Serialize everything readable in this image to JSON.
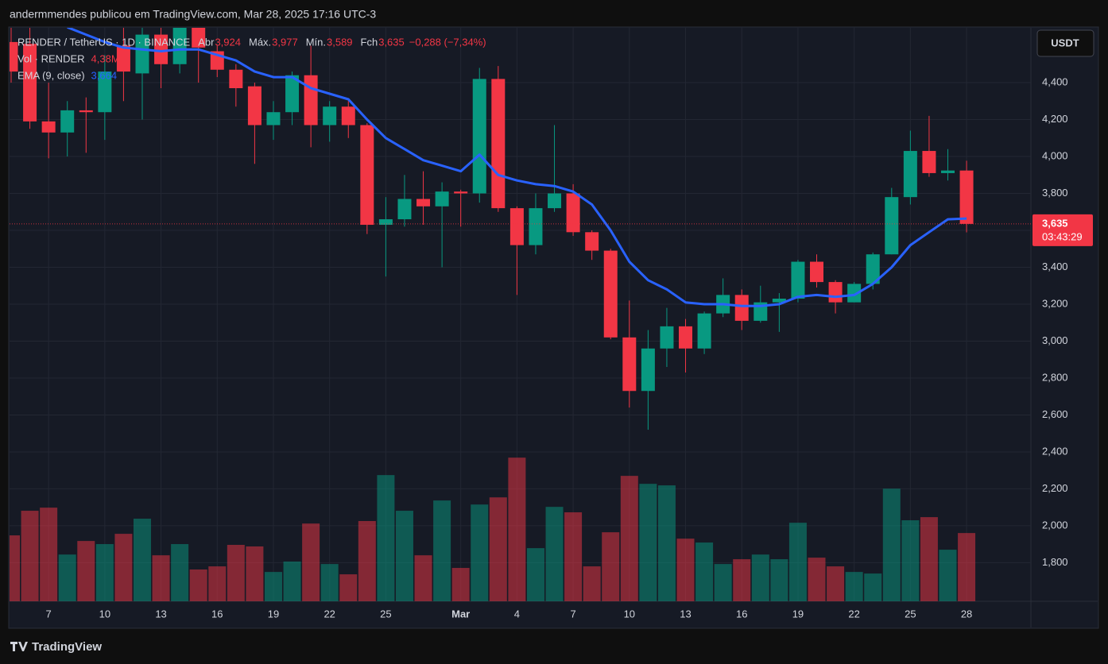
{
  "chart_data": {
    "type": "candlestick",
    "attribution": "andermmendes publicou em TradingView.com, Mar 28, 2025 17:16 UTC-3",
    "symbol": "RENDER / TetherUS · 1D · BINANCE",
    "ohlc_legend": [
      {
        "label": "Abr",
        "value": "3,924"
      },
      {
        "label": "Máx.",
        "value": "3,977"
      },
      {
        "label": "Mín.",
        "value": "3,589"
      },
      {
        "label": "Fch",
        "value": "3,635"
      }
    ],
    "change": "−0,288 (−7,34%)",
    "volume_legend": {
      "name": "Vol · RENDER",
      "value": "4,38M"
    },
    "ema_legend": {
      "name": "EMA (9, close)",
      "value": "3,664"
    },
    "currency": "USDT",
    "price_label": "3,635",
    "countdown": "03:43:29",
    "brand": "TradingView",
    "categories": [
      null,
      null,
      "7",
      null,
      null,
      "10",
      null,
      null,
      "13",
      null,
      null,
      "16",
      null,
      null,
      "19",
      null,
      null,
      "22",
      null,
      null,
      "25",
      null,
      null,
      null,
      "Mar",
      null,
      null,
      "4",
      null,
      null,
      "7",
      null,
      null,
      "10",
      null,
      null,
      "13",
      null,
      null,
      "16",
      null,
      null,
      "19",
      null,
      null,
      "22",
      null,
      null,
      "25",
      null,
      null,
      "28"
    ],
    "open": [
      4.62,
      4.61,
      4.19,
      4.13,
      4.25,
      4.24,
      4.6,
      4.45,
      4.66,
      4.5,
      4.7,
      4.57,
      4.47,
      4.38,
      4.17,
      4.24,
      4.44,
      4.17,
      4.27,
      4.17,
      3.63,
      3.66,
      3.77,
      3.73,
      3.81,
      3.8,
      4.42,
      3.72,
      3.52,
      3.72,
      3.8,
      3.59,
      3.49,
      3.02,
      2.73,
      2.96,
      3.08,
      2.96,
      3.15,
      3.25,
      3.11,
      3.21,
      3.23,
      3.43,
      3.32,
      3.21,
      3.31,
      3.47,
      3.78,
      4.03,
      3.91,
      3.924
    ],
    "high": [
      4.7,
      4.7,
      4.4,
      4.3,
      4.32,
      4.55,
      4.7,
      4.75,
      4.75,
      4.8,
      4.78,
      4.6,
      4.5,
      4.4,
      4.3,
      4.46,
      4.6,
      4.3,
      4.3,
      4.18,
      3.78,
      3.9,
      3.92,
      3.86,
      3.82,
      4.48,
      4.49,
      3.73,
      3.8,
      4.17,
      3.85,
      3.6,
      3.5,
      3.22,
      3.06,
      3.18,
      3.12,
      3.16,
      3.34,
      3.28,
      3.3,
      3.26,
      3.44,
      3.47,
      3.33,
      3.32,
      3.48,
      3.83,
      4.14,
      4.22,
      4.04,
      3.977
    ],
    "low": [
      4.4,
      4.15,
      3.99,
      4.0,
      4.02,
      4.09,
      4.3,
      4.2,
      4.37,
      4.45,
      4.4,
      4.43,
      4.27,
      3.96,
      4.09,
      4.17,
      4.05,
      4.08,
      4.1,
      3.58,
      3.35,
      3.62,
      3.63,
      3.4,
      3.62,
      3.75,
      3.7,
      3.25,
      3.47,
      3.7,
      3.57,
      3.44,
      3.01,
      2.64,
      2.52,
      2.86,
      2.83,
      2.93,
      3.13,
      3.06,
      3.1,
      3.05,
      3.21,
      3.29,
      3.15,
      3.21,
      3.28,
      3.47,
      3.74,
      3.89,
      3.87,
      3.589
    ],
    "close": [
      4.46,
      4.19,
      4.13,
      4.25,
      4.24,
      4.46,
      4.46,
      4.66,
      4.5,
      4.7,
      4.59,
      4.47,
      4.37,
      4.17,
      4.24,
      4.44,
      4.17,
      4.27,
      4.17,
      3.63,
      3.66,
      3.77,
      3.73,
      3.81,
      3.8,
      4.42,
      3.72,
      3.52,
      3.72,
      3.8,
      3.59,
      3.49,
      3.02,
      2.73,
      2.96,
      3.08,
      2.96,
      3.15,
      3.25,
      3.11,
      3.21,
      3.23,
      3.43,
      3.32,
      3.21,
      3.31,
      3.47,
      3.78,
      4.03,
      3.91,
      3.924,
      3.635
    ],
    "volume": [
      4.23,
      5.81,
      6.01,
      3.0,
      3.87,
      3.67,
      4.33,
      5.3,
      2.95,
      3.67,
      2.04,
      2.24,
      3.62,
      3.52,
      1.88,
      2.55,
      4.99,
      2.39,
      1.73,
      5.15,
      8.1,
      5.81,
      2.95,
      6.47,
      2.14,
      6.21,
      6.67,
      9.22,
      3.41,
      6.06,
      5.71,
      2.24,
      4.43,
      8.05,
      7.54,
      7.44,
      4.02,
      3.77,
      2.39,
      2.7,
      3.0,
      2.7,
      5.04,
      2.8,
      2.24,
      1.88,
      1.78,
      7.23,
      5.2,
      5.4,
      3.31,
      4.38
    ],
    "ema": [
      null,
      null,
      null,
      4.7,
      4.66,
      4.62,
      4.59,
      4.58,
      4.57,
      4.58,
      4.58,
      4.55,
      4.52,
      4.46,
      4.43,
      4.43,
      4.37,
      4.34,
      4.31,
      4.2,
      4.1,
      4.04,
      3.98,
      3.95,
      3.92,
      4.01,
      3.9,
      3.87,
      3.85,
      3.84,
      3.81,
      3.74,
      3.6,
      3.43,
      3.33,
      3.28,
      3.21,
      3.2,
      3.2,
      3.19,
      3.19,
      3.2,
      3.24,
      3.25,
      3.24,
      3.25,
      3.31,
      3.4,
      3.52,
      3.59,
      3.66,
      3.664
    ],
    "up_color": "#089981",
    "down_color": "#f23645",
    "ema_color": "#2962ff",
    "ylim": [
      1.591,
      4.697
    ],
    "volume_ylim": [
      0,
      18
    ],
    "yticks": [
      {
        "value": 1.8,
        "label": "1,800"
      },
      {
        "value": 2.0,
        "label": "2,000"
      },
      {
        "value": 2.2,
        "label": "2,200"
      },
      {
        "value": 2.4,
        "label": "2,400"
      },
      {
        "value": 2.6,
        "label": "2,600"
      },
      {
        "value": 2.8,
        "label": "2,800"
      },
      {
        "value": 3.0,
        "label": "3,000"
      },
      {
        "value": 3.2,
        "label": "3,200"
      },
      {
        "value": 3.4,
        "label": "3,400"
      },
      {
        "value": 3.6,
        "label": "3,600"
      },
      {
        "value": 3.8,
        "label": "3,800"
      },
      {
        "value": 4.0,
        "label": "4,000"
      },
      {
        "value": 4.2,
        "label": "4,200"
      },
      {
        "value": 4.4,
        "label": "4,400"
      }
    ],
    "grid": true
  }
}
